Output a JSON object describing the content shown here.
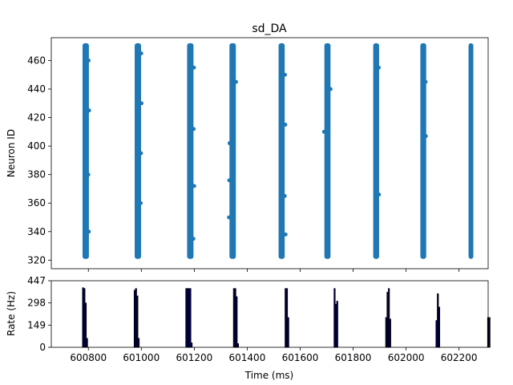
{
  "chart_data": [
    {
      "type": "scatter",
      "title": "sd_DA",
      "xlabel": "",
      "ylabel": "Neuron ID",
      "xlim": [
        600660,
        602310
      ],
      "ylim": [
        314,
        476
      ],
      "yticks": [
        320,
        340,
        360,
        380,
        400,
        420,
        440,
        460
      ],
      "xticks": [
        600800,
        601000,
        601200,
        601400,
        601600,
        601800,
        602000,
        602200
      ],
      "show_x_tick_labels": false,
      "neuron_range": [
        322,
        471
      ],
      "color": "#1f77b4",
      "bursts": [
        {
          "center": 600790,
          "width": 12,
          "strays": [
            [
              600801,
              460
            ],
            [
              600803,
              425
            ],
            [
              600800,
              380
            ],
            [
              600802,
              340
            ]
          ]
        },
        {
          "center": 600987,
          "width": 12,
          "strays": [
            [
              601000,
              465
            ],
            [
              601001,
              430
            ],
            [
              600999,
              395
            ],
            [
              600998,
              360
            ]
          ]
        },
        {
          "center": 601185,
          "width": 12,
          "strays": [
            [
              601199,
              455
            ],
            [
              601198,
              412
            ],
            [
              601200,
              372
            ],
            [
              601197,
              335
            ]
          ]
        },
        {
          "center": 601345,
          "width": 12,
          "strays": [
            [
              601333,
              402
            ],
            [
              601332,
              376
            ],
            [
              601331,
              350
            ],
            [
              601358,
              445
            ]
          ]
        },
        {
          "center": 601530,
          "width": 11,
          "strays": [
            [
              601543,
              450
            ],
            [
              601544,
              415
            ],
            [
              601542,
              365
            ],
            [
              601545,
              338
            ]
          ]
        },
        {
          "center": 601703,
          "width": 11,
          "strays": [
            [
              601690,
              410
            ],
            [
              601715,
              440
            ]
          ]
        },
        {
          "center": 601887,
          "width": 10,
          "strays": [
            [
              601898,
              366
            ],
            [
              601897,
              455
            ]
          ]
        },
        {
          "center": 602065,
          "width": 10,
          "strays": [
            [
              602075,
              407
            ],
            [
              602074,
              445
            ]
          ]
        },
        {
          "center": 602245,
          "width": 6,
          "strays": []
        }
      ]
    },
    {
      "type": "bar",
      "title": "",
      "xlabel": "Time (ms)",
      "ylabel": "Rate (Hz)",
      "xlim": [
        600660,
        602310
      ],
      "ylim": [
        0,
        447
      ],
      "yticks": [
        0,
        149,
        298,
        447
      ],
      "xticks": [
        600800,
        601000,
        601200,
        601400,
        601600,
        601800,
        602000,
        602200
      ],
      "bin_width": 5,
      "fill_color": "#00004d",
      "edge_color": "#000000",
      "bars": [
        [
          600780,
          400
        ],
        [
          600785,
          395
        ],
        [
          600790,
          298
        ],
        [
          600795,
          60
        ],
        [
          600975,
          383
        ],
        [
          600980,
          395
        ],
        [
          600985,
          345
        ],
        [
          600990,
          60
        ],
        [
          601170,
          395
        ],
        [
          601175,
          395
        ],
        [
          601180,
          395
        ],
        [
          601185,
          395
        ],
        [
          601190,
          30
        ],
        [
          601350,
          395
        ],
        [
          601355,
          395
        ],
        [
          601360,
          340
        ],
        [
          601365,
          25
        ],
        [
          601545,
          395
        ],
        [
          601550,
          395
        ],
        [
          601555,
          200
        ],
        [
          601730,
          395
        ],
        [
          601735,
          290
        ],
        [
          601740,
          310
        ],
        [
          601925,
          200
        ],
        [
          601930,
          370
        ],
        [
          601935,
          395
        ],
        [
          601940,
          190
        ],
        [
          602115,
          180
        ],
        [
          602120,
          360
        ],
        [
          602125,
          270
        ],
        [
          602310,
          200
        ],
        [
          602315,
          200
        ]
      ]
    }
  ]
}
